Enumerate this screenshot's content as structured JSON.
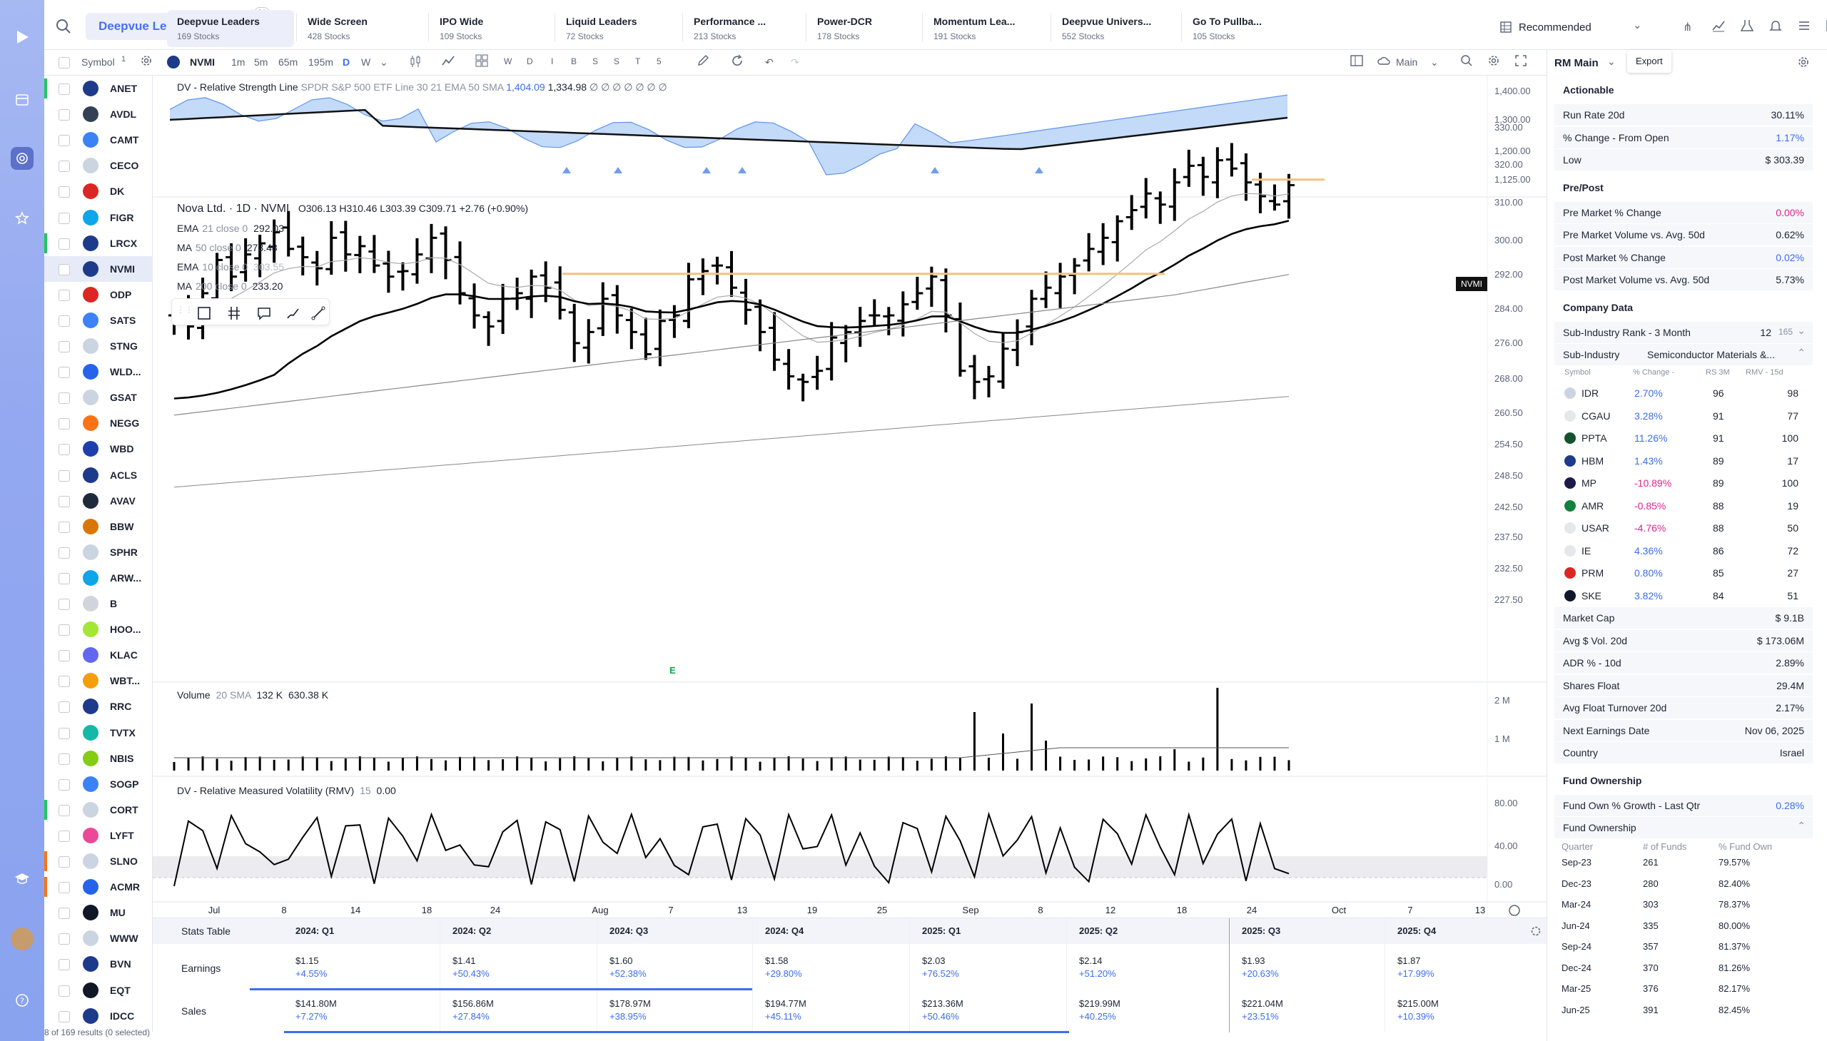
{
  "search": {
    "watchlist": "Deepvue Le...",
    "filter_count": "21"
  },
  "tabs": [
    {
      "name": "Deepvue Leaders",
      "count": "169 Stocks",
      "active": true
    },
    {
      "name": "Wide Screen",
      "count": "428 Stocks"
    },
    {
      "name": "IPO Wide",
      "count": "109 Stocks"
    },
    {
      "name": "Liquid Leaders",
      "count": "72 Stocks"
    },
    {
      "name": "Performance ...",
      "count": "213 Stocks"
    },
    {
      "name": "Power-DCR",
      "count": "178 Stocks"
    },
    {
      "name": "Momentum Lea...",
      "count": "191 Stocks"
    },
    {
      "name": "Deepvue Univers...",
      "count": "552 Stocks"
    },
    {
      "name": "Go To Pullba...",
      "count": "105 Stocks"
    }
  ],
  "top_right": {
    "recommended": "Recommended",
    "export_tooltip": "Export"
  },
  "toolbar": {
    "symbol_label": "Symbol",
    "symbol_count": "1",
    "ticker": "NVMI",
    "intervals": [
      "1m",
      "5m",
      "65m",
      "195m",
      "D",
      "W"
    ],
    "periods": [
      "W",
      "D",
      "I",
      "B",
      "S",
      "S",
      "T",
      "5"
    ],
    "layout": "Main",
    "panel_title": "RM Main"
  },
  "symbols": [
    {
      "t": "ANET",
      "c": "#1e3a8a",
      "m": "#22c55e"
    },
    {
      "t": "AVDL",
      "c": "#334155"
    },
    {
      "t": "CAMT",
      "c": "#3b82f6"
    },
    {
      "t": "CECO",
      "c": "#cbd5e1"
    },
    {
      "t": "DK",
      "c": "#dc2626"
    },
    {
      "t": "FIGR",
      "c": "#0ea5e9"
    },
    {
      "t": "LRCX",
      "c": "#1e3a8a",
      "m": "#22c55e"
    },
    {
      "t": "NVMI",
      "c": "#1e3a8a",
      "sel": true
    },
    {
      "t": "ODP",
      "c": "#dc2626"
    },
    {
      "t": "SATS",
      "c": "#3b82f6"
    },
    {
      "t": "STNG",
      "c": "#cbd5e1"
    },
    {
      "t": "WLD...",
      "c": "#2563eb"
    },
    {
      "t": "GSAT",
      "c": "#cbd5e1"
    },
    {
      "t": "NEGG",
      "c": "#f97316"
    },
    {
      "t": "WBD",
      "c": "#1e40af"
    },
    {
      "t": "ACLS",
      "c": "#1e3a8a"
    },
    {
      "t": "AVAV",
      "c": "#1e293b"
    },
    {
      "t": "BBW",
      "c": "#d97706"
    },
    {
      "t": "SPHR",
      "c": "#cbd5e1"
    },
    {
      "t": "ARW...",
      "c": "#0ea5e9"
    },
    {
      "t": "B",
      "c": "#d1d5db"
    },
    {
      "t": "HOO...",
      "c": "#a3e635"
    },
    {
      "t": "KLAC",
      "c": "#6366f1"
    },
    {
      "t": "WBT...",
      "c": "#f59e0b"
    },
    {
      "t": "RRC",
      "c": "#1e3a8a"
    },
    {
      "t": "TVTX",
      "c": "#14b8a6"
    },
    {
      "t": "NBIS",
      "c": "#84cc16"
    },
    {
      "t": "SOGP",
      "c": "#3b82f6"
    },
    {
      "t": "CORT",
      "c": "#cbd5e1",
      "m": "#22c55e"
    },
    {
      "t": "LYFT",
      "c": "#ec4899"
    },
    {
      "t": "SLNO",
      "c": "#cbd5e1",
      "m": "#f97316"
    },
    {
      "t": "ACMR",
      "c": "#2563eb",
      "m": "#f97316"
    },
    {
      "t": "MU",
      "c": "#111827"
    },
    {
      "t": "WWW",
      "c": "#cbd5e1"
    },
    {
      "t": "BVN",
      "c": "#1e3a8a"
    },
    {
      "t": "EQT",
      "c": "#111827"
    },
    {
      "t": "IDCC",
      "c": "#1e3a8a"
    }
  ],
  "results_text": "8 of 169 results (0 selected)",
  "chart": {
    "rs_legend": "DV - Relative Strength Line",
    "rs_params": "SPDR S&P 500 ETF Line 30 21 EMA 50 SMA",
    "rs_val1": "1,404.09",
    "rs_val2": "1,334.98",
    "rs_dots": "∅ ∅ ∅ ∅ ∅ ∅ ∅",
    "title": "Nova Ltd. · 1D · NVMI",
    "ohlc": "O306.13  H310.46  L303.39  C309.71  +2.76 (+0.90%)",
    "mas": [
      {
        "name": "EMA",
        "param": "21 close 0",
        "val": "292.03"
      },
      {
        "name": "MA",
        "param": "50 close 0",
        "val": "273.48"
      },
      {
        "name": "EMA",
        "param": "10 close 0",
        "val": "303.55"
      },
      {
        "name": "MA",
        "param": "200 close 0",
        "val": "233.20"
      }
    ],
    "price_tag": "NVMI",
    "earnings_marker": "E",
    "vol_legend": "Volume",
    "vol_params": "20 SMA",
    "vol_val1": "132 K",
    "vol_val2": "630.38 K",
    "rmv_legend": "DV - Relative Measured Volatility (RMV)",
    "rmv_param": "15",
    "rmv_val": "0.00",
    "rs_axis": [
      "1,400.00",
      "1,300.00",
      "1,200.00",
      "1,125.00"
    ],
    "price_axis": [
      "330.00",
      "320.00",
      "310.00",
      "300.00",
      "292.00",
      "284.00",
      "276.00",
      "268.00",
      "260.50",
      "254.50",
      "248.50",
      "242.50",
      "237.50",
      "232.50",
      "227.50"
    ],
    "vol_axis": [
      "2 M",
      "1 M"
    ],
    "rmv_axis": [
      "80.00",
      "40.00",
      "0.00"
    ],
    "x_axis": [
      "Jul",
      "8",
      "14",
      "18",
      "24",
      "Aug",
      "7",
      "13",
      "19",
      "25",
      "Sep",
      "8",
      "12",
      "18",
      "24",
      "Oct",
      "7",
      "13"
    ]
  },
  "chart_data": {
    "type": "bar",
    "symbol": "NVMI",
    "interval": "1D",
    "last": {
      "open": 306.13,
      "high": 310.46,
      "low": 303.39,
      "close": 309.71,
      "change": 2.76,
      "change_pct": 0.9
    },
    "moving_averages": {
      "EMA21": 292.03,
      "MA50": 273.48,
      "EMA10": 303.55,
      "MA200": 233.2
    },
    "price_range": [
      227.5,
      330.0
    ],
    "rs_line": [
      1404.09,
      1334.98
    ],
    "volume": {
      "last": 132000,
      "sma20": 630380
    },
    "rmv": 0.0
  },
  "stats": {
    "title": "Stats Table",
    "quarters": [
      "2024: Q1",
      "2024: Q2",
      "2024: Q3",
      "2024: Q4",
      "2025: Q1",
      "2025: Q2",
      "2025: Q3",
      "2025: Q4"
    ],
    "earnings_label": "Earnings",
    "earnings": [
      [
        "$1.15",
        "+4.55%"
      ],
      [
        "$1.41",
        "+50.43%"
      ],
      [
        "$1.60",
        "+52.38%"
      ],
      [
        "$1.58",
        "+29.80%"
      ],
      [
        "$2.03",
        "+76.52%"
      ],
      [
        "$2.14",
        "+51.20%"
      ],
      [
        "$1.93",
        "+20.63%"
      ],
      [
        "$1.87",
        "+17.99%"
      ]
    ],
    "sales_label": "Sales",
    "sales": [
      [
        "$141.80M",
        "+7.27%"
      ],
      [
        "$156.86M",
        "+27.84%"
      ],
      [
        "$178.97M",
        "+38.95%"
      ],
      [
        "$194.77M",
        "+45.11%"
      ],
      [
        "$213.36M",
        "+50.46%"
      ],
      [
        "$219.99M",
        "+40.25%"
      ],
      [
        "$221.04M",
        "+23.51%"
      ],
      [
        "$215.00M",
        "+10.39%"
      ]
    ]
  },
  "panel": {
    "actionable_title": "Actionable",
    "actionable": [
      {
        "l": "Run Rate 20d",
        "v": "30.11%"
      },
      {
        "l": "% Change - From Open",
        "v": "1.17%",
        "c": "pos"
      },
      {
        "l": "Low",
        "v": "$ 303.39"
      }
    ],
    "prepost_title": "Pre/Post",
    "prepost": [
      {
        "l": "Pre Market % Change",
        "v": "0.00%",
        "c": "neg"
      },
      {
        "l": "Pre Market Volume vs. Avg. 50d",
        "v": "0.62%"
      },
      {
        "l": "Post Market % Change",
        "v": "0.02%",
        "c": "pos"
      },
      {
        "l": "Post Market Volume vs. Avg. 50d",
        "v": "5.73%"
      }
    ],
    "company_title": "Company Data",
    "sub_rank_label": "Sub-Industry Rank - 3 Month",
    "sub_rank": "12",
    "sub_rank_of": "165",
    "sub_industry_label": "Sub-Industry",
    "sub_industry": "Semiconductor Materials &...",
    "peer_headers": [
      "Symbol",
      "% Change -",
      "RS 3M",
      "RMV - 15d"
    ],
    "peers": [
      {
        "s": "IDR",
        "p": "2.70%",
        "c": "pos",
        "rs": "96",
        "rmv": "98"
      },
      {
        "s": "CGAU",
        "p": "3.28%",
        "c": "pos",
        "rs": "91",
        "rmv": "77"
      },
      {
        "s": "PPTA",
        "p": "11.26%",
        "c": "pos",
        "rs": "91",
        "rmv": "100"
      },
      {
        "s": "HBM",
        "p": "1.43%",
        "c": "pos",
        "rs": "89",
        "rmv": "17"
      },
      {
        "s": "MP",
        "p": "-10.89%",
        "c": "neg",
        "rs": "89",
        "rmv": "100"
      },
      {
        "s": "AMR",
        "p": "-0.85%",
        "c": "neg",
        "rs": "88",
        "rmv": "19"
      },
      {
        "s": "USAR",
        "p": "-4.76%",
        "c": "neg",
        "rs": "88",
        "rmv": "50"
      },
      {
        "s": "IE",
        "p": "4.36%",
        "c": "pos",
        "rs": "86",
        "rmv": "72"
      },
      {
        "s": "PRM",
        "p": "0.80%",
        "c": "pos",
        "rs": "85",
        "rmv": "27"
      },
      {
        "s": "SKE",
        "p": "3.82%",
        "c": "pos",
        "rs": "84",
        "rmv": "51"
      }
    ],
    "company": [
      {
        "l": "Market Cap",
        "v": "$ 9.1B"
      },
      {
        "l": "Avg $ Vol. 20d",
        "v": "$ 173.06M"
      },
      {
        "l": "ADR % - 10d",
        "v": "2.89%"
      },
      {
        "l": "Shares Float",
        "v": "29.4M"
      },
      {
        "l": "Avg Float Turnover 20d",
        "v": "2.17%"
      },
      {
        "l": "Next Earnings Date",
        "v": "Nov 06, 2025"
      },
      {
        "l": "Country",
        "v": "Israel"
      }
    ],
    "fund_title": "Fund Ownership",
    "fund_growth_label": "Fund Own % Growth - Last Qtr",
    "fund_growth": "0.28%",
    "fund_sub": "Fund Ownership",
    "fund_headers": [
      "Quarter",
      "# of Funds",
      "% Fund Own"
    ],
    "fund_rows": [
      [
        "Sep-23",
        "261",
        "79.57%"
      ],
      [
        "Dec-23",
        "280",
        "82.40%"
      ],
      [
        "Mar-24",
        "303",
        "78.37%"
      ],
      [
        "Jun-24",
        "335",
        "80.00%"
      ],
      [
        "Sep-24",
        "357",
        "81.37%"
      ],
      [
        "Dec-24",
        "370",
        "81.26%"
      ],
      [
        "Mar-25",
        "376",
        "82.17%"
      ],
      [
        "Jun-25",
        "391",
        "82.45%"
      ]
    ]
  }
}
